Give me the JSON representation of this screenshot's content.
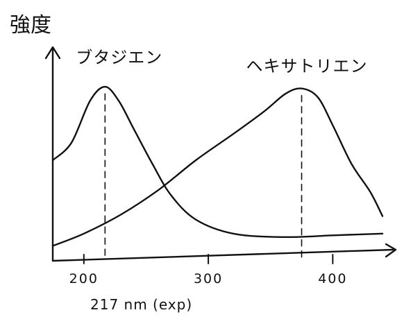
{
  "chart_data": {
    "type": "line",
    "ylabel": "強度",
    "xlabel": "",
    "x_ticks": [
      200,
      300,
      400
    ],
    "x_tick_labels": [
      "200",
      "300",
      "400"
    ],
    "xlim": [
      175,
      445
    ],
    "ylim": [
      0,
      100
    ],
    "grid": false,
    "annotation": "217 nm (exp)",
    "series": [
      {
        "name": "ブタジエン",
        "peak_x": 217,
        "points": [
          [
            175,
            52
          ],
          [
            190,
            62
          ],
          [
            205,
            86
          ],
          [
            217,
            94
          ],
          [
            228,
            86
          ],
          [
            240,
            70
          ],
          [
            255,
            50
          ],
          [
            270,
            32
          ],
          [
            290,
            18
          ],
          [
            320,
            10
          ],
          [
            360,
            8
          ],
          [
            400,
            9
          ],
          [
            440,
            10
          ]
        ]
      },
      {
        "name": "ヘキサトリエン",
        "peak_x": 375,
        "points": [
          [
            175,
            3
          ],
          [
            200,
            10
          ],
          [
            230,
            21
          ],
          [
            260,
            35
          ],
          [
            290,
            52
          ],
          [
            320,
            67
          ],
          [
            345,
            80
          ],
          [
            362,
            90
          ],
          [
            375,
            93
          ],
          [
            388,
            88
          ],
          [
            400,
            72
          ],
          [
            415,
            50
          ],
          [
            430,
            34
          ],
          [
            440,
            20
          ]
        ]
      }
    ]
  }
}
